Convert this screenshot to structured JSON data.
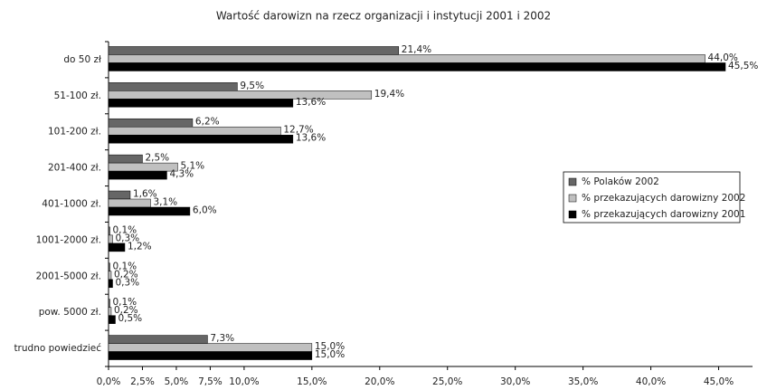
{
  "chart_data": {
    "type": "hbar",
    "title": "Wartość darowizn na rzecz organizacji i instytucji 2001 i 2002",
    "categories": [
      "do 50 zł",
      "51-100 zł.",
      "101-200 zł.",
      "201-400 zł.",
      "401-1000 zł.",
      "1001-2000 zł.",
      "2001-5000 zł.",
      "pow. 5000 zł.",
      "trudno powiedzieć"
    ],
    "series": [
      {
        "name": "% Polaków 2002",
        "color": "#666666",
        "values": [
          21.4,
          9.5,
          6.2,
          2.5,
          1.6,
          0.1,
          0.1,
          0.1,
          7.3
        ],
        "value_labels": [
          "21,4%",
          "9,5%",
          "6,2%",
          "2,5%",
          "1,6%",
          "0,1%",
          "0,1%",
          "0,1%",
          "7,3%"
        ]
      },
      {
        "name": "% przekazujących darowizny 2002",
        "color": "#c0c0c0",
        "values": [
          44.0,
          19.4,
          12.7,
          5.1,
          3.1,
          0.3,
          0.2,
          0.2,
          15.0
        ],
        "value_labels": [
          "44,0%",
          "19,4%",
          "12,7%",
          "5,1%",
          "3,1%",
          "0,3%",
          "0,2%",
          "0,2%",
          "15,0%"
        ]
      },
      {
        "name": "% przekazujących darowizny 2001",
        "color": "#000000",
        "values": [
          45.5,
          13.6,
          13.6,
          4.3,
          6.0,
          1.2,
          0.3,
          0.5,
          15.0
        ],
        "value_labels": [
          "45,5%",
          "13,6%",
          "13,6%",
          "4,3%",
          "6,0%",
          "1,2%",
          "0,3%",
          "0,5%",
          "15,0%"
        ]
      }
    ],
    "xlim": [
      0,
      47.5
    ],
    "xticks": [
      {
        "value": 0,
        "label": "0,0%"
      },
      {
        "value": 2.5,
        "label": "2,5%"
      },
      {
        "value": 5,
        "label": "5,0%"
      },
      {
        "value": 7.5,
        "label": "7,5%"
      },
      {
        "value": 10,
        "label": "10,0%"
      },
      {
        "value": 15,
        "label": "15,0%"
      },
      {
        "value": 20,
        "label": "20,0%"
      },
      {
        "value": 25,
        "label": "25,0%"
      },
      {
        "value": 30,
        "label": "30,0%"
      },
      {
        "value": 35,
        "label": "35,0%"
      },
      {
        "value": 40,
        "label": "40,0%"
      },
      {
        "value": 45,
        "label": "45,0%"
      }
    ],
    "legend": "right"
  }
}
